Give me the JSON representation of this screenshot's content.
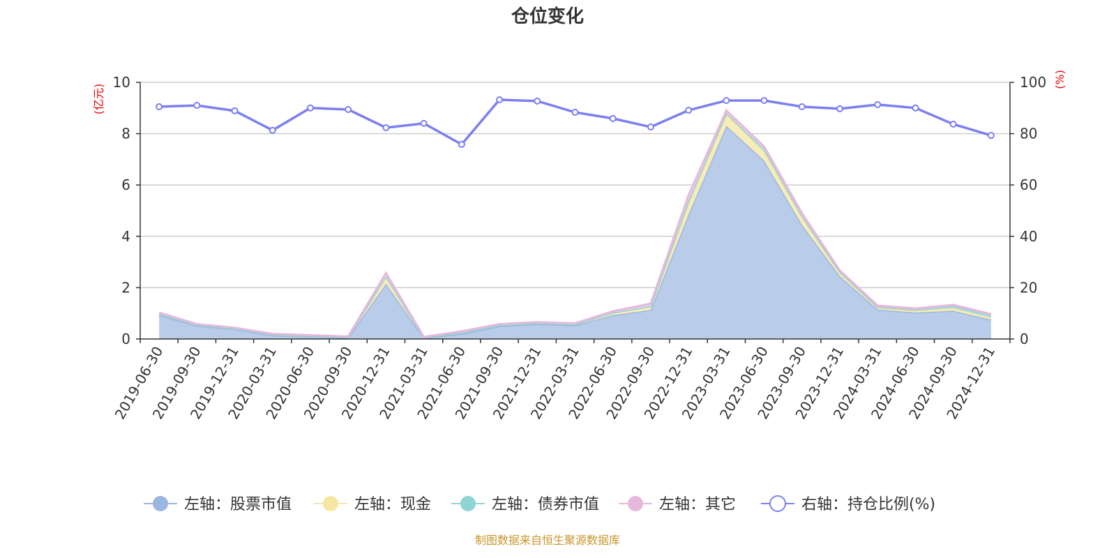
{
  "chart_data": {
    "type": "area",
    "title": "仓位变化",
    "ylabel_left": "(亿元)",
    "ylabel_right": "(%)",
    "ylim_left": [
      0,
      10
    ],
    "ylim_right": [
      0,
      100
    ],
    "yticks_left": [
      0,
      2,
      4,
      6,
      8,
      10
    ],
    "yticks_right": [
      0,
      20,
      40,
      60,
      80,
      100
    ],
    "grid": true,
    "legend_placement": "bottom",
    "categories": [
      "2019-06-30",
      "2019-09-30",
      "2019-12-31",
      "2020-03-31",
      "2020-06-30",
      "2020-09-30",
      "2020-12-31",
      "2021-03-31",
      "2021-06-30",
      "2021-09-30",
      "2021-12-31",
      "2022-03-31",
      "2022-06-30",
      "2022-09-30",
      "2022-12-31",
      "2023-03-31",
      "2023-06-30",
      "2023-09-30",
      "2023-12-31",
      "2024-03-31",
      "2024-06-30",
      "2024-09-30",
      "2024-12-31"
    ],
    "series": [
      {
        "name": "左轴：股票市值",
        "axis": "left",
        "stacked": true,
        "color": "#9bb6e0",
        "fill": "#b9cdea",
        "values": [
          0.93,
          0.52,
          0.38,
          0.14,
          0.09,
          0.05,
          2.15,
          0.04,
          0.2,
          0.5,
          0.58,
          0.53,
          0.93,
          1.13,
          4.85,
          8.3,
          6.95,
          4.45,
          2.45,
          1.15,
          1.03,
          1.1,
          0.75
        ]
      },
      {
        "name": "左轴：现金",
        "axis": "left",
        "stacked": true,
        "color": "#f5e6a3",
        "fill": "#f8ecb8",
        "values": [
          0.05,
          0.03,
          0.03,
          0.03,
          0.03,
          0.03,
          0.3,
          0.02,
          0.05,
          0.04,
          0.04,
          0.04,
          0.1,
          0.15,
          0.4,
          0.45,
          0.35,
          0.3,
          0.15,
          0.07,
          0.07,
          0.1,
          0.07
        ]
      },
      {
        "name": "左轴：债券市值",
        "axis": "left",
        "stacked": true,
        "color": "#8fd3d3",
        "fill": "#b3e2e2",
        "values": [
          0,
          0,
          0,
          0,
          0,
          0,
          0,
          0,
          0,
          0,
          0,
          0,
          0,
          0,
          0.15,
          0.05,
          0.1,
          0.05,
          0.02,
          0.03,
          0.04,
          0.08,
          0.1
        ]
      },
      {
        "name": "左轴：其它",
        "axis": "left",
        "stacked": true,
        "color": "#e6b8dc",
        "fill": "#f0d3ea",
        "values": [
          0.05,
          0.03,
          0.03,
          0.03,
          0.03,
          0.02,
          0.12,
          0.02,
          0.05,
          0.04,
          0.04,
          0.04,
          0.05,
          0.1,
          0.2,
          0.1,
          0.1,
          0.1,
          0.05,
          0.05,
          0.05,
          0.05,
          0.05
        ]
      },
      {
        "name": "右轴：持仓比例(%)",
        "axis": "right",
        "type": "line",
        "color": "#7b7ff0",
        "values": [
          90.5,
          91,
          88.9,
          81.3,
          90,
          89.4,
          82.3,
          84,
          75.8,
          93.2,
          92.7,
          88.3,
          85.9,
          82.6,
          89.1,
          92.9,
          92.9,
          90.5,
          89.7,
          91.3,
          90,
          83.7,
          79.3
        ]
      }
    ]
  },
  "footer": "制图数据来自恒生聚源数据库"
}
